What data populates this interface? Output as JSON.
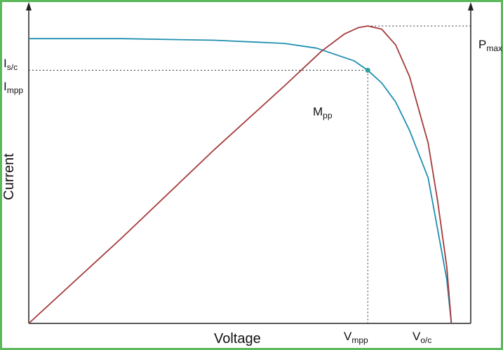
{
  "colors": {
    "current_curve": "#1f8fb0",
    "power_curve": "#a33a3a",
    "axis": "#222222",
    "border": "#5cb85c",
    "mpp_marker": "#2aa198"
  },
  "chart_data": {
    "type": "line",
    "title": "",
    "xlabel": "Voltage",
    "ylabel": "Current",
    "xlim": [
      0,
      1
    ],
    "ylim": [
      0,
      1
    ],
    "grid": false,
    "legend": "none",
    "series": [
      {
        "x": [
          0,
          0.2,
          0.4,
          0.55,
          0.62,
          0.66,
          0.7,
          0.73,
          0.76,
          0.79,
          0.82,
          0.86,
          0.88,
          0.9,
          0.91
        ],
        "y": [
          0.9,
          0.9,
          0.895,
          0.885,
          0.87,
          0.85,
          0.83,
          0.8,
          0.76,
          0.7,
          0.61,
          0.46,
          0.3,
          0.14,
          0
        ]
      },
      {
        "x": [
          0,
          0.2,
          0.4,
          0.55,
          0.63,
          0.68,
          0.71,
          0.73,
          0.76,
          0.79,
          0.82,
          0.86,
          0.88,
          0.9,
          0.91
        ],
        "y": [
          0,
          0.27,
          0.55,
          0.75,
          0.86,
          0.915,
          0.935,
          0.94,
          0.93,
          0.88,
          0.78,
          0.57,
          0.39,
          0.18,
          0
        ]
      }
    ],
    "annotations": [
      {
        "id": "isc",
        "base": "I",
        "sub": "s/c"
      },
      {
        "id": "impp",
        "base": "I",
        "sub": "mpp"
      },
      {
        "id": "pmax",
        "base": "P",
        "sub": "max"
      },
      {
        "id": "mpp",
        "base": "M",
        "sub": "pp"
      },
      {
        "id": "vmpp",
        "base": "V",
        "sub": "mpp"
      },
      {
        "id": "voc",
        "base": "V",
        "sub": "o/c"
      }
    ],
    "reference_points": {
      "isc_y": 0.9,
      "impp_y": 0.8,
      "vmpp_x": 0.73,
      "pmax_y": 0.94,
      "voc_x": 0.91
    }
  }
}
